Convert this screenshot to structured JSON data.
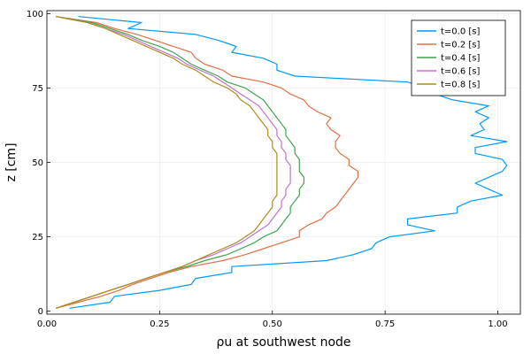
{
  "chart_data": {
    "type": "line",
    "xlabel": "ρu at southwest node",
    "ylabel": "z [cm]",
    "xlim": [
      0.0,
      1.05
    ],
    "ylim": [
      -1,
      101
    ],
    "grid": true,
    "legend_position": "top-right",
    "x_ticks": [
      {
        "value": 0.0,
        "label": "0.00"
      },
      {
        "value": 0.25,
        "label": "0.25"
      },
      {
        "value": 0.5,
        "label": "0.50"
      },
      {
        "value": 0.75,
        "label": "0.75"
      },
      {
        "value": 1.0,
        "label": "1.00"
      }
    ],
    "y_ticks": [
      {
        "value": 0,
        "label": "0"
      },
      {
        "value": 25,
        "label": "25"
      },
      {
        "value": 50,
        "label": "50"
      },
      {
        "value": 75,
        "label": "75"
      },
      {
        "value": 100,
        "label": "100"
      }
    ],
    "series": [
      {
        "name": "t=0.0 [s]",
        "color": "#009AFA",
        "points": [
          [
            0.05,
            1
          ],
          [
            0.14,
            3
          ],
          [
            0.15,
            5
          ],
          [
            0.25,
            7
          ],
          [
            0.32,
            9
          ],
          [
            0.33,
            11
          ],
          [
            0.41,
            13
          ],
          [
            0.41,
            15
          ],
          [
            0.62,
            17
          ],
          [
            0.68,
            19
          ],
          [
            0.72,
            21
          ],
          [
            0.73,
            23
          ],
          [
            0.76,
            25
          ],
          [
            0.86,
            27
          ],
          [
            0.8,
            29
          ],
          [
            0.8,
            31
          ],
          [
            0.91,
            33
          ],
          [
            0.91,
            35
          ],
          [
            0.94,
            37
          ],
          [
            1.01,
            39
          ],
          [
            0.98,
            41
          ],
          [
            0.95,
            43
          ],
          [
            0.98,
            45
          ],
          [
            1.01,
            47
          ],
          [
            1.02,
            49
          ],
          [
            1.01,
            51
          ],
          [
            0.95,
            53
          ],
          [
            0.95,
            55
          ],
          [
            1.02,
            57
          ],
          [
            0.94,
            59
          ],
          [
            0.97,
            61
          ],
          [
            0.96,
            63
          ],
          [
            0.98,
            65
          ],
          [
            0.95,
            67
          ],
          [
            0.98,
            69
          ],
          [
            0.9,
            71
          ],
          [
            0.86,
            73
          ],
          [
            0.84,
            75
          ],
          [
            0.8,
            77
          ],
          [
            0.55,
            79
          ],
          [
            0.51,
            81
          ],
          [
            0.51,
            83
          ],
          [
            0.48,
            85
          ],
          [
            0.41,
            87
          ],
          [
            0.42,
            89
          ],
          [
            0.38,
            91
          ],
          [
            0.33,
            93
          ],
          [
            0.18,
            95
          ],
          [
            0.21,
            97
          ],
          [
            0.07,
            99
          ]
        ]
      },
      {
        "name": "t=0.2 [s]",
        "color": "#E26F46",
        "points": [
          [
            0.02,
            1
          ],
          [
            0.07,
            3
          ],
          [
            0.12,
            5
          ],
          [
            0.16,
            7
          ],
          [
            0.19,
            9
          ],
          [
            0.23,
            11
          ],
          [
            0.27,
            13
          ],
          [
            0.32,
            15
          ],
          [
            0.39,
            17
          ],
          [
            0.44,
            19
          ],
          [
            0.48,
            21
          ],
          [
            0.52,
            23
          ],
          [
            0.56,
            25
          ],
          [
            0.56,
            27
          ],
          [
            0.58,
            29
          ],
          [
            0.61,
            31
          ],
          [
            0.62,
            33
          ],
          [
            0.64,
            35
          ],
          [
            0.65,
            37
          ],
          [
            0.66,
            39
          ],
          [
            0.67,
            41
          ],
          [
            0.68,
            43
          ],
          [
            0.69,
            45
          ],
          [
            0.69,
            47
          ],
          [
            0.67,
            49
          ],
          [
            0.67,
            51
          ],
          [
            0.65,
            53
          ],
          [
            0.64,
            55
          ],
          [
            0.64,
            57
          ],
          [
            0.65,
            59
          ],
          [
            0.63,
            61
          ],
          [
            0.62,
            63
          ],
          [
            0.63,
            65
          ],
          [
            0.6,
            67
          ],
          [
            0.58,
            69
          ],
          [
            0.57,
            71
          ],
          [
            0.54,
            73
          ],
          [
            0.52,
            75
          ],
          [
            0.48,
            77
          ],
          [
            0.41,
            79
          ],
          [
            0.39,
            81
          ],
          [
            0.35,
            83
          ],
          [
            0.33,
            85
          ],
          [
            0.32,
            87
          ],
          [
            0.28,
            89
          ],
          [
            0.24,
            91
          ],
          [
            0.2,
            93
          ],
          [
            0.15,
            95
          ],
          [
            0.11,
            97
          ],
          [
            0.02,
            99
          ]
        ]
      },
      {
        "name": "t=0.4 [s]",
        "color": "#3DA44D",
        "points": [
          [
            0.02,
            1
          ],
          [
            0.06,
            3
          ],
          [
            0.1,
            5
          ],
          [
            0.14,
            7
          ],
          [
            0.18,
            9
          ],
          [
            0.22,
            11
          ],
          [
            0.26,
            13
          ],
          [
            0.31,
            15
          ],
          [
            0.35,
            17
          ],
          [
            0.4,
            19
          ],
          [
            0.43,
            21
          ],
          [
            0.46,
            23
          ],
          [
            0.48,
            25
          ],
          [
            0.51,
            27
          ],
          [
            0.52,
            29
          ],
          [
            0.53,
            31
          ],
          [
            0.54,
            33
          ],
          [
            0.54,
            35
          ],
          [
            0.55,
            37
          ],
          [
            0.56,
            39
          ],
          [
            0.56,
            41
          ],
          [
            0.57,
            43
          ],
          [
            0.57,
            45
          ],
          [
            0.56,
            47
          ],
          [
            0.56,
            49
          ],
          [
            0.56,
            51
          ],
          [
            0.55,
            53
          ],
          [
            0.55,
            55
          ],
          [
            0.54,
            57
          ],
          [
            0.53,
            59
          ],
          [
            0.53,
            61
          ],
          [
            0.52,
            63
          ],
          [
            0.51,
            65
          ],
          [
            0.5,
            67
          ],
          [
            0.49,
            69
          ],
          [
            0.48,
            71
          ],
          [
            0.46,
            73
          ],
          [
            0.44,
            75
          ],
          [
            0.4,
            77
          ],
          [
            0.38,
            79
          ],
          [
            0.35,
            81
          ],
          [
            0.32,
            83
          ],
          [
            0.3,
            85
          ],
          [
            0.28,
            87
          ],
          [
            0.25,
            89
          ],
          [
            0.21,
            91
          ],
          [
            0.18,
            93
          ],
          [
            0.14,
            95
          ],
          [
            0.1,
            97
          ],
          [
            0.02,
            99
          ]
        ]
      },
      {
        "name": "t=0.6 [s]",
        "color": "#C271D2",
        "points": [
          [
            0.02,
            1
          ],
          [
            0.06,
            3
          ],
          [
            0.1,
            5
          ],
          [
            0.14,
            7
          ],
          [
            0.18,
            9
          ],
          [
            0.22,
            11
          ],
          [
            0.26,
            13
          ],
          [
            0.3,
            15
          ],
          [
            0.33,
            17
          ],
          [
            0.37,
            19
          ],
          [
            0.4,
            21
          ],
          [
            0.43,
            23
          ],
          [
            0.45,
            25
          ],
          [
            0.47,
            27
          ],
          [
            0.49,
            29
          ],
          [
            0.5,
            31
          ],
          [
            0.51,
            33
          ],
          [
            0.52,
            35
          ],
          [
            0.52,
            37
          ],
          [
            0.53,
            39
          ],
          [
            0.53,
            41
          ],
          [
            0.54,
            43
          ],
          [
            0.54,
            45
          ],
          [
            0.54,
            47
          ],
          [
            0.54,
            49
          ],
          [
            0.53,
            51
          ],
          [
            0.53,
            53
          ],
          [
            0.52,
            55
          ],
          [
            0.52,
            57
          ],
          [
            0.51,
            59
          ],
          [
            0.51,
            61
          ],
          [
            0.5,
            63
          ],
          [
            0.49,
            65
          ],
          [
            0.48,
            67
          ],
          [
            0.47,
            69
          ],
          [
            0.45,
            71
          ],
          [
            0.43,
            73
          ],
          [
            0.41,
            75
          ],
          [
            0.39,
            77
          ],
          [
            0.37,
            79
          ],
          [
            0.34,
            81
          ],
          [
            0.31,
            83
          ],
          [
            0.29,
            85
          ],
          [
            0.26,
            87
          ],
          [
            0.23,
            89
          ],
          [
            0.2,
            91
          ],
          [
            0.17,
            93
          ],
          [
            0.13,
            95
          ],
          [
            0.09,
            97
          ],
          [
            0.02,
            99
          ]
        ]
      },
      {
        "name": "t=0.8 [s]",
        "color": "#AC8D18",
        "points": [
          [
            0.02,
            1
          ],
          [
            0.06,
            3
          ],
          [
            0.1,
            5
          ],
          [
            0.14,
            7
          ],
          [
            0.18,
            9
          ],
          [
            0.22,
            11
          ],
          [
            0.26,
            13
          ],
          [
            0.3,
            15
          ],
          [
            0.33,
            17
          ],
          [
            0.36,
            19
          ],
          [
            0.39,
            21
          ],
          [
            0.42,
            23
          ],
          [
            0.44,
            25
          ],
          [
            0.46,
            27
          ],
          [
            0.47,
            29
          ],
          [
            0.48,
            31
          ],
          [
            0.49,
            33
          ],
          [
            0.5,
            35
          ],
          [
            0.5,
            37
          ],
          [
            0.51,
            39
          ],
          [
            0.51,
            41
          ],
          [
            0.51,
            43
          ],
          [
            0.51,
            45
          ],
          [
            0.51,
            47
          ],
          [
            0.51,
            49
          ],
          [
            0.51,
            51
          ],
          [
            0.51,
            53
          ],
          [
            0.5,
            55
          ],
          [
            0.5,
            57
          ],
          [
            0.49,
            59
          ],
          [
            0.49,
            61
          ],
          [
            0.48,
            63
          ],
          [
            0.47,
            65
          ],
          [
            0.46,
            67
          ],
          [
            0.45,
            69
          ],
          [
            0.43,
            71
          ],
          [
            0.42,
            73
          ],
          [
            0.4,
            75
          ],
          [
            0.37,
            77
          ],
          [
            0.35,
            79
          ],
          [
            0.33,
            81
          ],
          [
            0.3,
            83
          ],
          [
            0.28,
            85
          ],
          [
            0.25,
            87
          ],
          [
            0.22,
            89
          ],
          [
            0.19,
            91
          ],
          [
            0.16,
            93
          ],
          [
            0.13,
            95
          ],
          [
            0.09,
            97
          ],
          [
            0.02,
            99
          ]
        ]
      }
    ]
  }
}
